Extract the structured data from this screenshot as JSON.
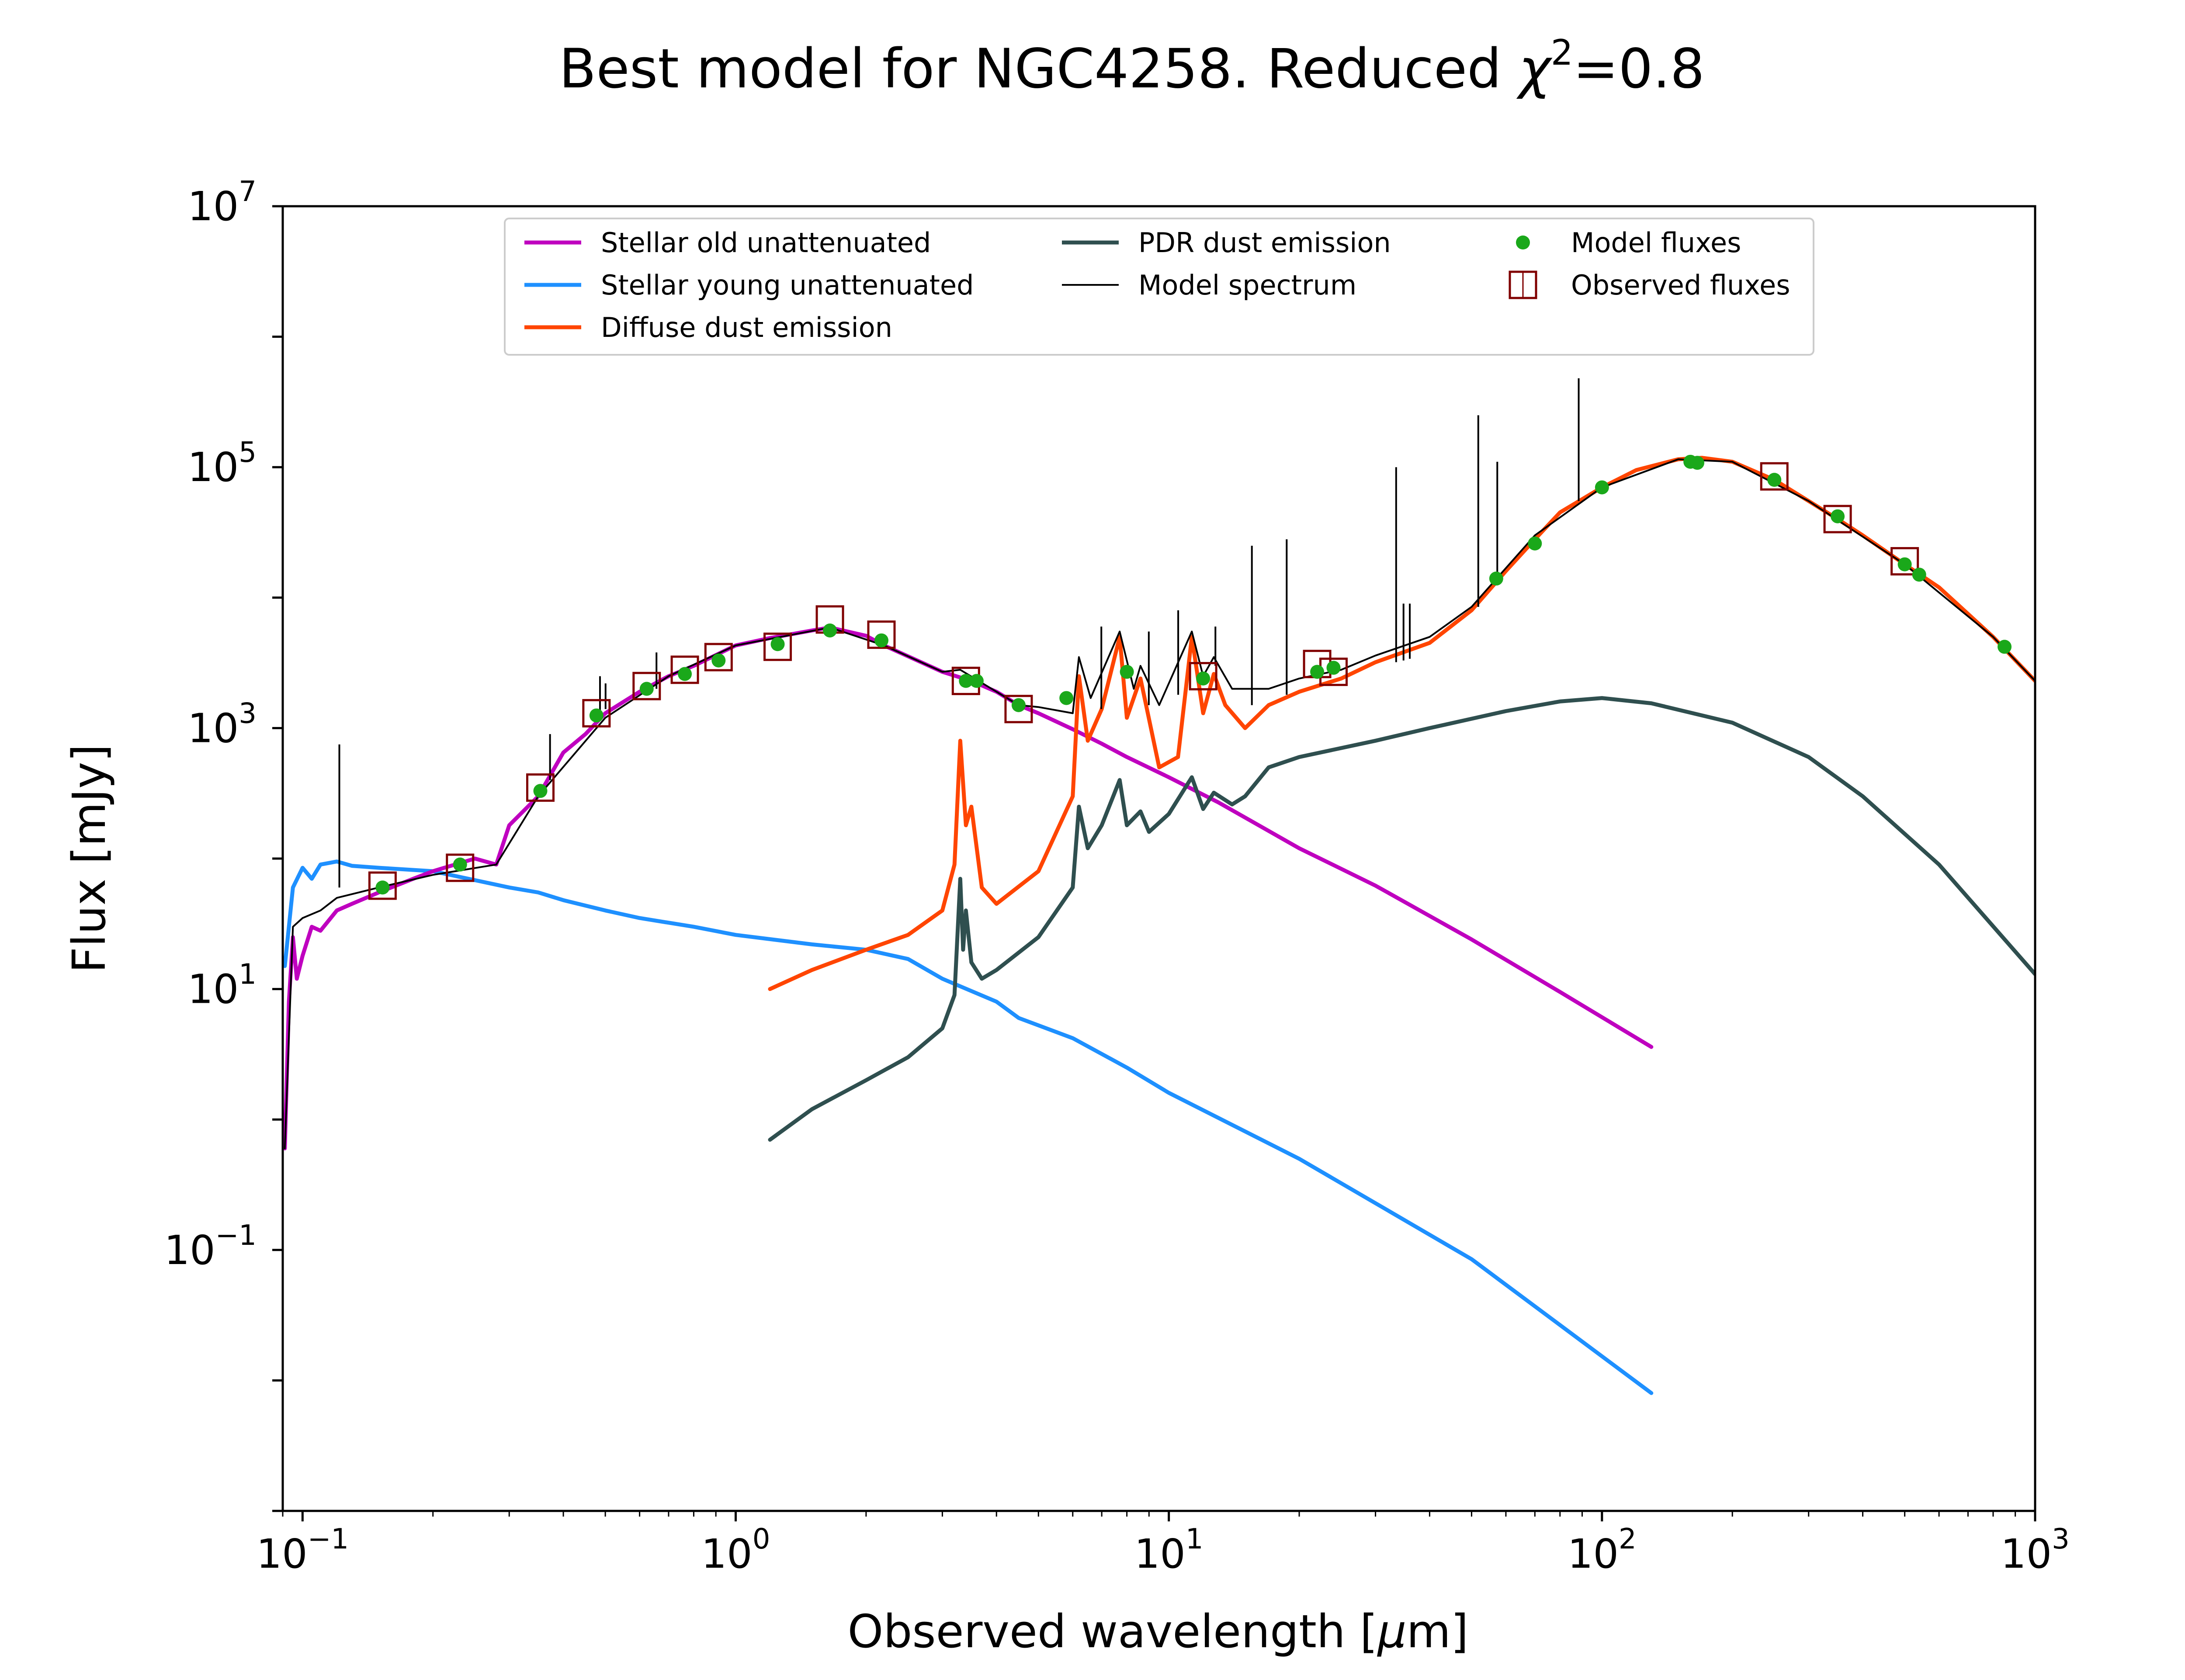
{
  "chart_data": {
    "type": "line",
    "title": "Best model for NGC4258. Reduced χ²=0.8",
    "title_main": "Best model for NGC4258. Reduced ",
    "title_chi": "χ",
    "title_sup": "2",
    "title_tail": "=0.8",
    "xlabel": "Observed wavelength [μm]",
    "xlabel_pre": "Observed wavelength [",
    "xlabel_mu": "μ",
    "xlabel_post": "m]",
    "ylabel": "Flux [mJy]",
    "xscale": "log",
    "yscale": "log",
    "xlim": [
      0.09,
      1000
    ],
    "ylim": [
      0.001,
      10000000
    ],
    "grid": false,
    "legend_position": "top-center",
    "x_ticks": [
      {
        "value": 0.1,
        "base": "10",
        "exp": "−1"
      },
      {
        "value": 1,
        "base": "10",
        "exp": "0"
      },
      {
        "value": 10,
        "base": "10",
        "exp": "1"
      },
      {
        "value": 100,
        "base": "10",
        "exp": "2"
      },
      {
        "value": 1000,
        "base": "10",
        "exp": "3"
      }
    ],
    "y_ticks": [
      {
        "value": 0.1,
        "base": "10",
        "exp": "−1"
      },
      {
        "value": 10,
        "base": "10",
        "exp": "1"
      },
      {
        "value": 1000,
        "base": "10",
        "exp": "3"
      },
      {
        "value": 100000,
        "base": "10",
        "exp": "5"
      },
      {
        "value": 10000000,
        "base": "10",
        "exp": "7"
      }
    ],
    "y_minor_ticks": [
      0.001,
      0.01,
      1,
      100,
      10000,
      1000000
    ],
    "legend": [
      {
        "label": "Stellar old unattenuated",
        "kind": "line",
        "color": "#bf00bf"
      },
      {
        "label": "Stellar young unattenuated",
        "kind": "line",
        "color": "#1e90ff"
      },
      {
        "label": "Diffuse dust emission",
        "kind": "line",
        "color": "#ff4500"
      },
      {
        "label": "PDR dust emission",
        "kind": "line",
        "color": "#2f4f4f"
      },
      {
        "label": "Model spectrum",
        "kind": "thin-line",
        "color": "#000000"
      },
      {
        "label": "Model fluxes",
        "kind": "dot",
        "color": "#1aa81a"
      },
      {
        "label": "Observed fluxes",
        "kind": "square",
        "color": "#800000"
      }
    ],
    "series": [
      {
        "name": "Stellar old unattenuated",
        "color": "#bf00bf",
        "points": [
          [
            0.091,
            0.6
          ],
          [
            0.093,
            8
          ],
          [
            0.095,
            25
          ],
          [
            0.097,
            12
          ],
          [
            0.1,
            18
          ],
          [
            0.105,
            30
          ],
          [
            0.11,
            28
          ],
          [
            0.12,
            40
          ],
          [
            0.13,
            45
          ],
          [
            0.15,
            55
          ],
          [
            0.18,
            70
          ],
          [
            0.2,
            80
          ],
          [
            0.25,
            100
          ],
          [
            0.28,
            90
          ],
          [
            0.3,
            180
          ],
          [
            0.35,
            300
          ],
          [
            0.4,
            650
          ],
          [
            0.45,
            900
          ],
          [
            0.5,
            1300
          ],
          [
            0.6,
            1900
          ],
          [
            0.7,
            2500
          ],
          [
            0.8,
            3000
          ],
          [
            1.0,
            4300
          ],
          [
            1.2,
            4900
          ],
          [
            1.5,
            5600
          ],
          [
            1.65,
            5900
          ],
          [
            2.0,
            5100
          ],
          [
            2.2,
            4300
          ],
          [
            3.0,
            2700
          ],
          [
            3.5,
            2300
          ],
          [
            4.0,
            1900
          ],
          [
            4.5,
            1500
          ],
          [
            5.0,
            1300
          ],
          [
            6.0,
            980
          ],
          [
            7.0,
            760
          ],
          [
            8.0,
            600
          ],
          [
            10.0,
            420
          ],
          [
            13.0,
            270
          ],
          [
            20.0,
            120
          ],
          [
            30.0,
            62
          ],
          [
            50.0,
            24
          ],
          [
            80.0,
            9.5
          ],
          [
            130.0,
            3.6
          ]
        ]
      },
      {
        "name": "Stellar young unattenuated",
        "color": "#1e90ff",
        "points": [
          [
            0.091,
            15
          ],
          [
            0.095,
            60
          ],
          [
            0.1,
            85
          ],
          [
            0.105,
            70
          ],
          [
            0.11,
            90
          ],
          [
            0.12,
            95
          ],
          [
            0.13,
            88
          ],
          [
            0.15,
            85
          ],
          [
            0.2,
            80
          ],
          [
            0.3,
            60
          ],
          [
            0.35,
            55
          ],
          [
            0.4,
            48
          ],
          [
            0.5,
            40
          ],
          [
            0.6,
            35
          ],
          [
            0.8,
            30
          ],
          [
            1.0,
            26
          ],
          [
            1.5,
            22
          ],
          [
            2.0,
            20
          ],
          [
            2.5,
            17
          ],
          [
            3.0,
            12
          ],
          [
            4.0,
            8
          ],
          [
            4.5,
            6
          ],
          [
            6.0,
            4.2
          ],
          [
            8.0,
            2.5
          ],
          [
            10.0,
            1.6
          ],
          [
            20.0,
            0.5
          ],
          [
            50.0,
            0.085
          ],
          [
            130.0,
            0.008
          ]
        ]
      },
      {
        "name": "Diffuse dust emission",
        "color": "#ff4500",
        "points": [
          [
            1.2,
            10
          ],
          [
            1.5,
            14
          ],
          [
            2.0,
            20
          ],
          [
            2.5,
            26
          ],
          [
            3.0,
            40
          ],
          [
            3.2,
            90
          ],
          [
            3.3,
            800
          ],
          [
            3.4,
            180
          ],
          [
            3.5,
            250
          ],
          [
            3.7,
            60
          ],
          [
            4.0,
            45
          ],
          [
            5.0,
            80
          ],
          [
            6.0,
            300
          ],
          [
            6.2,
            2500
          ],
          [
            6.5,
            800
          ],
          [
            7.0,
            1400
          ],
          [
            7.7,
            5000
          ],
          [
            8.0,
            1200
          ],
          [
            8.6,
            2400
          ],
          [
            9.5,
            500
          ],
          [
            10.5,
            600
          ],
          [
            11.3,
            5000
          ],
          [
            12.0,
            1300
          ],
          [
            12.7,
            2600
          ],
          [
            13.5,
            1500
          ],
          [
            15.0,
            1000
          ],
          [
            17.0,
            1500
          ],
          [
            20.0,
            1900
          ],
          [
            25.0,
            2400
          ],
          [
            30.0,
            3200
          ],
          [
            40.0,
            4500
          ],
          [
            50.0,
            8000
          ],
          [
            60.0,
            16000
          ],
          [
            70.0,
            28000
          ],
          [
            80.0,
            45000
          ],
          [
            100.0,
            70000
          ],
          [
            120.0,
            95000
          ],
          [
            150.0,
            115000
          ],
          [
            170.0,
            118000
          ],
          [
            200.0,
            110000
          ],
          [
            250.0,
            80000
          ],
          [
            300.0,
            55000
          ],
          [
            350.0,
            40000
          ],
          [
            400.0,
            30000
          ],
          [
            500.0,
            18000
          ],
          [
            600.0,
            12000
          ],
          [
            800.0,
            5000
          ],
          [
            1000.0,
            2300
          ]
        ]
      },
      {
        "name": "PDR dust emission",
        "color": "#2f4f4f",
        "points": [
          [
            1.2,
            0.7
          ],
          [
            1.5,
            1.2
          ],
          [
            2.0,
            2.0
          ],
          [
            2.5,
            3.0
          ],
          [
            3.0,
            5.0
          ],
          [
            3.2,
            9.0
          ],
          [
            3.3,
            70
          ],
          [
            3.35,
            20
          ],
          [
            3.4,
            40
          ],
          [
            3.5,
            16
          ],
          [
            3.7,
            12
          ],
          [
            4.0,
            14
          ],
          [
            5.0,
            25
          ],
          [
            6.0,
            60
          ],
          [
            6.2,
            250
          ],
          [
            6.5,
            120
          ],
          [
            7.0,
            180
          ],
          [
            7.7,
            400
          ],
          [
            8.0,
            180
          ],
          [
            8.6,
            230
          ],
          [
            9.0,
            160
          ],
          [
            10.0,
            220
          ],
          [
            11.3,
            420
          ],
          [
            12.0,
            240
          ],
          [
            12.7,
            320
          ],
          [
            14.0,
            260
          ],
          [
            15.0,
            300
          ],
          [
            17.0,
            500
          ],
          [
            20.0,
            600
          ],
          [
            30.0,
            800
          ],
          [
            40.0,
            1000
          ],
          [
            60.0,
            1350
          ],
          [
            80.0,
            1600
          ],
          [
            100.0,
            1700
          ],
          [
            130.0,
            1550
          ],
          [
            200.0,
            1100
          ],
          [
            300.0,
            600
          ],
          [
            400.0,
            300
          ],
          [
            600.0,
            90
          ],
          [
            1000.0,
            13
          ]
        ]
      },
      {
        "name": "Model spectrum",
        "color": "#000000",
        "line_width": "thin",
        "points": [
          [
            0.091,
            0.6
          ],
          [
            0.095,
            30
          ],
          [
            0.1,
            35
          ],
          [
            0.11,
            40
          ],
          [
            0.12,
            50
          ],
          [
            0.15,
            60
          ],
          [
            0.2,
            75
          ],
          [
            0.28,
            90
          ],
          [
            0.35,
            300
          ],
          [
            0.5,
            1200
          ],
          [
            0.7,
            2500
          ],
          [
            1.0,
            4300
          ],
          [
            1.65,
            5900
          ],
          [
            2.2,
            4300
          ],
          [
            3.0,
            2700
          ],
          [
            3.3,
            2800
          ],
          [
            4.0,
            1900
          ],
          [
            4.5,
            1500
          ],
          [
            5.0,
            1450
          ],
          [
            6.0,
            1300
          ],
          [
            6.2,
            3500
          ],
          [
            6.6,
            1700
          ],
          [
            7.7,
            5500
          ],
          [
            8.3,
            2000
          ],
          [
            8.6,
            3000
          ],
          [
            9.5,
            1500
          ],
          [
            11.3,
            5500
          ],
          [
            12.0,
            2500
          ],
          [
            12.7,
            3500
          ],
          [
            14.0,
            2000
          ],
          [
            17.0,
            2000
          ],
          [
            20.0,
            2400
          ],
          [
            25.0,
            2800
          ],
          [
            30.0,
            3600
          ],
          [
            40.0,
            5000
          ],
          [
            50.0,
            8500
          ],
          [
            70.0,
            30000
          ],
          [
            100.0,
            70000
          ],
          [
            150.0,
            115000
          ],
          [
            200.0,
            110000
          ],
          [
            300.0,
            55000
          ],
          [
            500.0,
            18000
          ],
          [
            800.0,
            5000
          ],
          [
            1000.0,
            2300
          ]
        ]
      }
    ],
    "emission_lines": [
      {
        "x": 0.1216,
        "y_base": 60,
        "y_peak": 750
      },
      {
        "x": 0.3727,
        "y_base": 400,
        "y_peak": 900
      },
      {
        "x": 0.4861,
        "y_base": 1300,
        "y_peak": 2500
      },
      {
        "x": 0.5007,
        "y_base": 1400,
        "y_peak": 2200
      },
      {
        "x": 0.6563,
        "y_base": 2000,
        "y_peak": 3800
      },
      {
        "x": 6.985,
        "y_base": 1400,
        "y_peak": 6000
      },
      {
        "x": 8.99,
        "y_base": 1500,
        "y_peak": 5500
      },
      {
        "x": 10.51,
        "y_base": 1800,
        "y_peak": 8000
      },
      {
        "x": 12.81,
        "y_base": 3000,
        "y_peak": 6000
      },
      {
        "x": 15.55,
        "y_base": 1500,
        "y_peak": 25000
      },
      {
        "x": 18.71,
        "y_base": 1800,
        "y_peak": 28000
      },
      {
        "x": 33.48,
        "y_base": 3200,
        "y_peak": 100000
      },
      {
        "x": 34.82,
        "y_base": 3300,
        "y_peak": 9000
      },
      {
        "x": 36.0,
        "y_base": 3400,
        "y_peak": 9000
      },
      {
        "x": 51.81,
        "y_base": 8500,
        "y_peak": 250000
      },
      {
        "x": 57.32,
        "y_base": 13000,
        "y_peak": 110000
      },
      {
        "x": 88.36,
        "y_base": 55000,
        "y_peak": 480000
      }
    ],
    "model_fluxes": [
      [
        0.153,
        60
      ],
      [
        0.231,
        90
      ],
      [
        0.354,
        330
      ],
      [
        0.477,
        1250
      ],
      [
        0.623,
        2000
      ],
      [
        0.763,
        2600
      ],
      [
        0.913,
        3300
      ],
      [
        1.25,
        4400
      ],
      [
        1.65,
        5600
      ],
      [
        2.17,
        4700
      ],
      [
        3.4,
        2300
      ],
      [
        3.6,
        2300
      ],
      [
        4.5,
        1500
      ],
      [
        5.8,
        1700
      ],
      [
        8.0,
        2700
      ],
      [
        12.0,
        2400
      ],
      [
        22.0,
        2700
      ],
      [
        24.0,
        2900
      ],
      [
        57.0,
        14000
      ],
      [
        70.0,
        26000
      ],
      [
        100.0,
        70000
      ],
      [
        160.0,
        110000
      ],
      [
        166.0,
        108000
      ],
      [
        250.0,
        80000
      ],
      [
        350.0,
        42000
      ],
      [
        500.0,
        18000
      ],
      [
        540.0,
        15000
      ],
      [
        850.0,
        4200
      ]
    ],
    "observed_fluxes": [
      [
        0.153,
        62
      ],
      [
        0.231,
        85
      ],
      [
        0.354,
        350
      ],
      [
        0.477,
        1300
      ],
      [
        0.623,
        2100
      ],
      [
        0.763,
        2800
      ],
      [
        0.913,
        3500
      ],
      [
        1.25,
        4200
      ],
      [
        1.65,
        6800
      ],
      [
        2.17,
        5200
      ],
      [
        3.4,
        2300
      ],
      [
        4.5,
        1400
      ],
      [
        12.0,
        2500
      ],
      [
        22.0,
        3100
      ],
      [
        24.0,
        2700
      ],
      [
        250.0,
        85000
      ],
      [
        350.0,
        40000
      ],
      [
        500.0,
        19000
      ]
    ]
  }
}
